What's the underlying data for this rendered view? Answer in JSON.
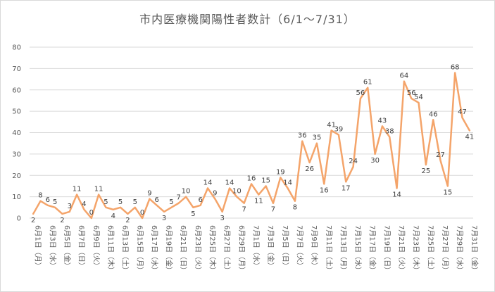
{
  "chart_data": {
    "type": "line",
    "title": "市内医療機関陽性者数計（6/1～7/31）",
    "ylim": [
      0,
      80
    ],
    "yticks": [
      "0",
      "10",
      "20",
      "30",
      "40",
      "50",
      "60",
      "70",
      "80"
    ],
    "grid": true,
    "line_color": "#f4a46a",
    "series": [
      {
        "values": [
          2,
          8,
          6,
          5,
          2,
          3,
          11,
          4,
          0,
          11,
          5,
          4,
          5,
          2,
          5,
          0,
          9,
          6,
          3,
          5,
          7,
          10,
          5,
          6,
          14,
          9,
          3,
          14,
          10,
          7,
          16,
          11,
          15,
          7,
          19,
          14,
          8,
          36,
          26,
          35,
          16,
          41,
          39,
          17,
          24,
          56,
          61,
          30,
          43,
          38,
          14,
          64,
          56,
          54,
          25,
          46,
          27,
          15,
          68,
          47,
          41
        ]
      }
    ],
    "x_tick_labels": [
      "6月1日（月）",
      "6月3日（水）",
      "6月5日（金）",
      "6月7日（日）",
      "6月9日（火）",
      "6月11日（木）",
      "6月13日（土）",
      "6月15日（月）",
      "6月17日（水）",
      "6月19日（金）",
      "6月21日（日）",
      "6月23日（火）",
      "6月25日（木）",
      "6月27日（土）",
      "6月29日（月）",
      "7月1日（水）",
      "7月3日（金）",
      "7月5日（日）",
      "7月7日（火）",
      "7月9日（木）",
      "7月11日（土）",
      "7月13日（月）",
      "7月15日（水）",
      "7月17日（金）",
      "7月19日（日）",
      "7月21日（火）",
      "7月23日（木）",
      "7月25日（土）",
      "7月27日（月）",
      "7月29日（水）",
      "7月31日（金）"
    ]
  }
}
